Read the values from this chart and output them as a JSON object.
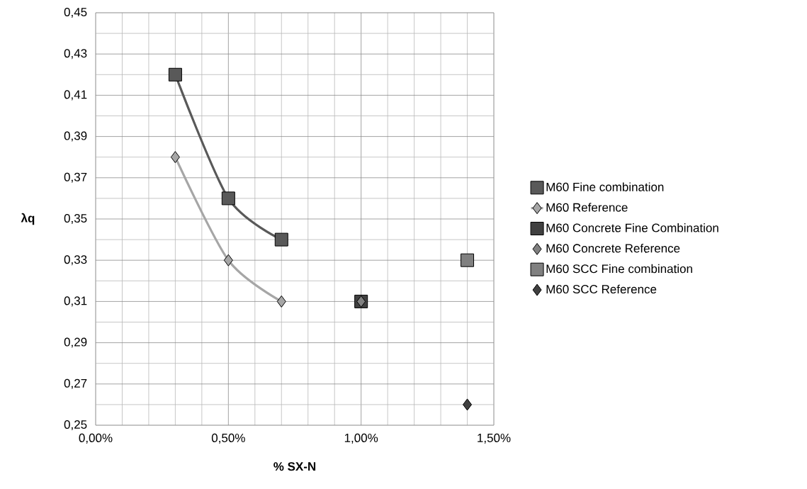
{
  "chart_data": {
    "type": "line",
    "xlabel": "% SX-N",
    "ylabel": "λq",
    "xlim": [
      0,
      1.5
    ],
    "ylim": [
      0.25,
      0.45
    ],
    "xticks": [
      {
        "value": 0,
        "label": "0,00%"
      },
      {
        "value": 0.5,
        "label": "0,50%"
      },
      {
        "value": 1.0,
        "label": "1,00%"
      },
      {
        "value": 1.5,
        "label": "1,50%"
      }
    ],
    "yticks": [
      {
        "value": 0.25,
        "label": "0,25"
      },
      {
        "value": 0.27,
        "label": "0,27"
      },
      {
        "value": 0.29,
        "label": "0,29"
      },
      {
        "value": 0.31,
        "label": "0,31"
      },
      {
        "value": 0.33,
        "label": "0,33"
      },
      {
        "value": 0.35,
        "label": "0,35"
      },
      {
        "value": 0.37,
        "label": "0,37"
      },
      {
        "value": 0.39,
        "label": "0,39"
      },
      {
        "value": 0.41,
        "label": "0,41"
      },
      {
        "value": 0.43,
        "label": "0,43"
      },
      {
        "value": 0.45,
        "label": "0,45"
      }
    ],
    "grid": true,
    "legend": "right",
    "series": [
      {
        "name": "M60 Fine combination",
        "marker": "square",
        "color": "#595959",
        "x": [
          0.3,
          0.5,
          0.7
        ],
        "values": [
          0.42,
          0.36,
          0.34
        ]
      },
      {
        "name": "M60 Reference",
        "marker": "diamond",
        "color": "#a6a6a6",
        "x": [
          0.3,
          0.5,
          0.7
        ],
        "values": [
          0.38,
          0.33,
          0.31
        ]
      },
      {
        "name": "M60 Concrete Fine Combination",
        "type": "scatter",
        "marker": "square",
        "color": "#404040",
        "x": [
          1.0
        ],
        "values": [
          0.31
        ]
      },
      {
        "name": "M60 Concrete Reference",
        "type": "scatter",
        "marker": "diamond",
        "color": "#808080",
        "x": [
          1.0
        ],
        "values": [
          0.31
        ]
      },
      {
        "name": "M60 SCC Fine combination",
        "type": "scatter",
        "marker": "square",
        "color": "#808080",
        "x": [
          1.4
        ],
        "values": [
          0.33
        ]
      },
      {
        "name": "M60 SCC Reference",
        "type": "scatter",
        "marker": "diamond",
        "color": "#404040",
        "x": [
          1.4
        ],
        "values": [
          0.26
        ]
      }
    ]
  }
}
